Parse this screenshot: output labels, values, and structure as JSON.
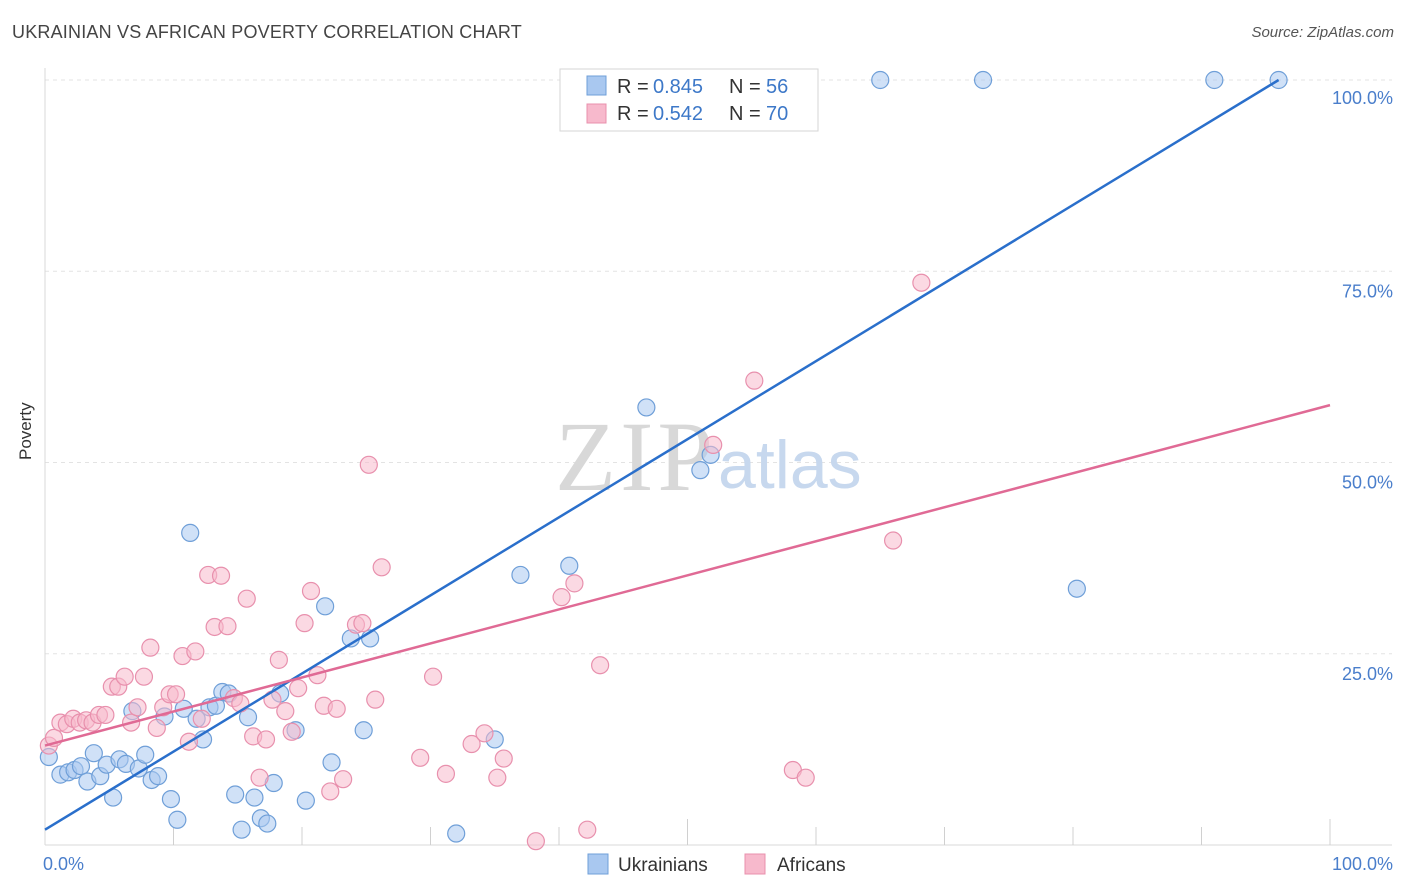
{
  "header": {
    "title": "UKRAINIAN VS AFRICAN POVERTY CORRELATION CHART",
    "source": "Source: ZipAtlas.com"
  },
  "watermark": {
    "zip": "ZIP",
    "atlas": "atlas"
  },
  "legend": {
    "r_label": "R =",
    "n_label": "N =",
    "ukrainians": {
      "r": "0.845",
      "n": "56"
    },
    "africans": {
      "r": "0.542",
      "n": "70"
    }
  },
  "colors": {
    "ukrainians_fill": "#a9c8f0",
    "ukrainians_stroke": "#6f9fd8",
    "ukrainians_line": "#2a6fcb",
    "africans_fill": "#f7b9cc",
    "africans_stroke": "#e890ad",
    "africans_line": "#e06a95",
    "tick": "#4a7ecb"
  },
  "chart_data": {
    "type": "scatter",
    "title": "UKRAINIAN VS AFRICAN POVERTY CORRELATION CHART",
    "xlabel": "",
    "ylabel": "Poverty",
    "xlim": [
      0,
      100
    ],
    "ylim": [
      0,
      100
    ],
    "x_tick_labels": [
      "0.0%",
      "100.0%"
    ],
    "y_ticks": [
      25,
      50,
      75,
      100
    ],
    "y_tick_labels": [
      "25.0%",
      "50.0%",
      "75.0%",
      "100.0%"
    ],
    "grid": true,
    "legend_position": "top-center",
    "series": [
      {
        "name": "Ukrainians",
        "r": 0.845,
        "n": 56,
        "trend": [
          [
            0,
            2
          ],
          [
            96,
            100
          ]
        ],
        "points": [
          [
            0.3,
            11.5
          ],
          [
            1.2,
            9.2
          ],
          [
            1.8,
            9.5
          ],
          [
            2.3,
            9.8
          ],
          [
            2.8,
            10.3
          ],
          [
            3.3,
            8.3
          ],
          [
            3.8,
            12
          ],
          [
            4.3,
            9
          ],
          [
            4.8,
            10.5
          ],
          [
            5.3,
            6.2
          ],
          [
            5.8,
            11.2
          ],
          [
            6.3,
            10.6
          ],
          [
            6.8,
            17.5
          ],
          [
            7.3,
            10
          ],
          [
            7.8,
            11.8
          ],
          [
            8.3,
            8.5
          ],
          [
            8.8,
            9
          ],
          [
            9.3,
            16.8
          ],
          [
            9.8,
            6
          ],
          [
            10.3,
            3.3
          ],
          [
            10.8,
            17.8
          ],
          [
            11.3,
            40.8
          ],
          [
            11.8,
            16.5
          ],
          [
            12.3,
            13.8
          ],
          [
            12.8,
            18
          ],
          [
            13.3,
            18.2
          ],
          [
            13.8,
            20
          ],
          [
            14.3,
            19.8
          ],
          [
            14.8,
            6.6
          ],
          [
            15.3,
            2
          ],
          [
            15.8,
            16.7
          ],
          [
            16.3,
            6.2
          ],
          [
            16.8,
            3.5
          ],
          [
            17.3,
            2.8
          ],
          [
            17.8,
            8.1
          ],
          [
            18.3,
            19.8
          ],
          [
            19.5,
            15
          ],
          [
            20.3,
            5.8
          ],
          [
            21.8,
            31.2
          ],
          [
            22.3,
            10.8
          ],
          [
            23.8,
            27
          ],
          [
            24.8,
            15
          ],
          [
            25.3,
            27
          ],
          [
            32,
            1.5
          ],
          [
            35,
            13.8
          ],
          [
            37,
            35.3
          ],
          [
            40.8,
            36.5
          ],
          [
            46.8,
            57.2
          ],
          [
            51,
            49
          ],
          [
            51.8,
            51
          ],
          [
            54.5,
            96
          ],
          [
            65,
            100
          ],
          [
            73,
            100
          ],
          [
            80.3,
            33.5
          ],
          [
            91,
            100
          ],
          [
            96,
            100
          ]
        ]
      },
      {
        "name": "Africans",
        "r": 0.542,
        "n": 70,
        "trend": [
          [
            0,
            13
          ],
          [
            100,
            57.5
          ]
        ],
        "points": [
          [
            0.3,
            13
          ],
          [
            0.7,
            14
          ],
          [
            1.2,
            16
          ],
          [
            1.7,
            15.8
          ],
          [
            2.2,
            16.5
          ],
          [
            2.7,
            16
          ],
          [
            3.2,
            16.3
          ],
          [
            3.7,
            16
          ],
          [
            4.2,
            17
          ],
          [
            4.7,
            17
          ],
          [
            5.2,
            20.7
          ],
          [
            5.7,
            20.7
          ],
          [
            6.2,
            22
          ],
          [
            6.7,
            16
          ],
          [
            7.2,
            18
          ],
          [
            7.7,
            22
          ],
          [
            8.2,
            25.8
          ],
          [
            8.7,
            15.3
          ],
          [
            9.2,
            18
          ],
          [
            9.7,
            19.7
          ],
          [
            10.2,
            19.7
          ],
          [
            10.7,
            24.7
          ],
          [
            11.2,
            13.5
          ],
          [
            11.7,
            25.3
          ],
          [
            12.2,
            16.5
          ],
          [
            12.7,
            35.3
          ],
          [
            13.2,
            28.5
          ],
          [
            13.7,
            35.2
          ],
          [
            14.2,
            28.6
          ],
          [
            14.7,
            19.2
          ],
          [
            15.2,
            18.5
          ],
          [
            15.7,
            32.2
          ],
          [
            16.2,
            14.2
          ],
          [
            16.7,
            8.8
          ],
          [
            17.2,
            13.8
          ],
          [
            17.7,
            19
          ],
          [
            18.2,
            24.2
          ],
          [
            18.7,
            17.5
          ],
          [
            19.2,
            14.8
          ],
          [
            19.7,
            20.5
          ],
          [
            20.2,
            29
          ],
          [
            20.7,
            33.2
          ],
          [
            21.2,
            22.2
          ],
          [
            21.7,
            18.2
          ],
          [
            22.2,
            7
          ],
          [
            22.7,
            17.8
          ],
          [
            23.2,
            8.6
          ],
          [
            24.2,
            28.8
          ],
          [
            24.7,
            29
          ],
          [
            25.2,
            49.7
          ],
          [
            25.7,
            19
          ],
          [
            26.2,
            36.3
          ],
          [
            29.2,
            11.4
          ],
          [
            30.2,
            22
          ],
          [
            31.2,
            9.3
          ],
          [
            33.2,
            13.2
          ],
          [
            34.2,
            14.6
          ],
          [
            35.2,
            8.8
          ],
          [
            35.7,
            11.3
          ],
          [
            38.2,
            0.5
          ],
          [
            40.2,
            32.4
          ],
          [
            41.2,
            34.2
          ],
          [
            42.2,
            2
          ],
          [
            43.2,
            23.5
          ],
          [
            52,
            52.3
          ],
          [
            55.2,
            60.7
          ],
          [
            58.2,
            9.8
          ],
          [
            59.2,
            8.8
          ],
          [
            66,
            39.8
          ],
          [
            68.2,
            73.5
          ]
        ]
      }
    ]
  },
  "bottom_legend": [
    "Ukrainians",
    "Africans"
  ]
}
